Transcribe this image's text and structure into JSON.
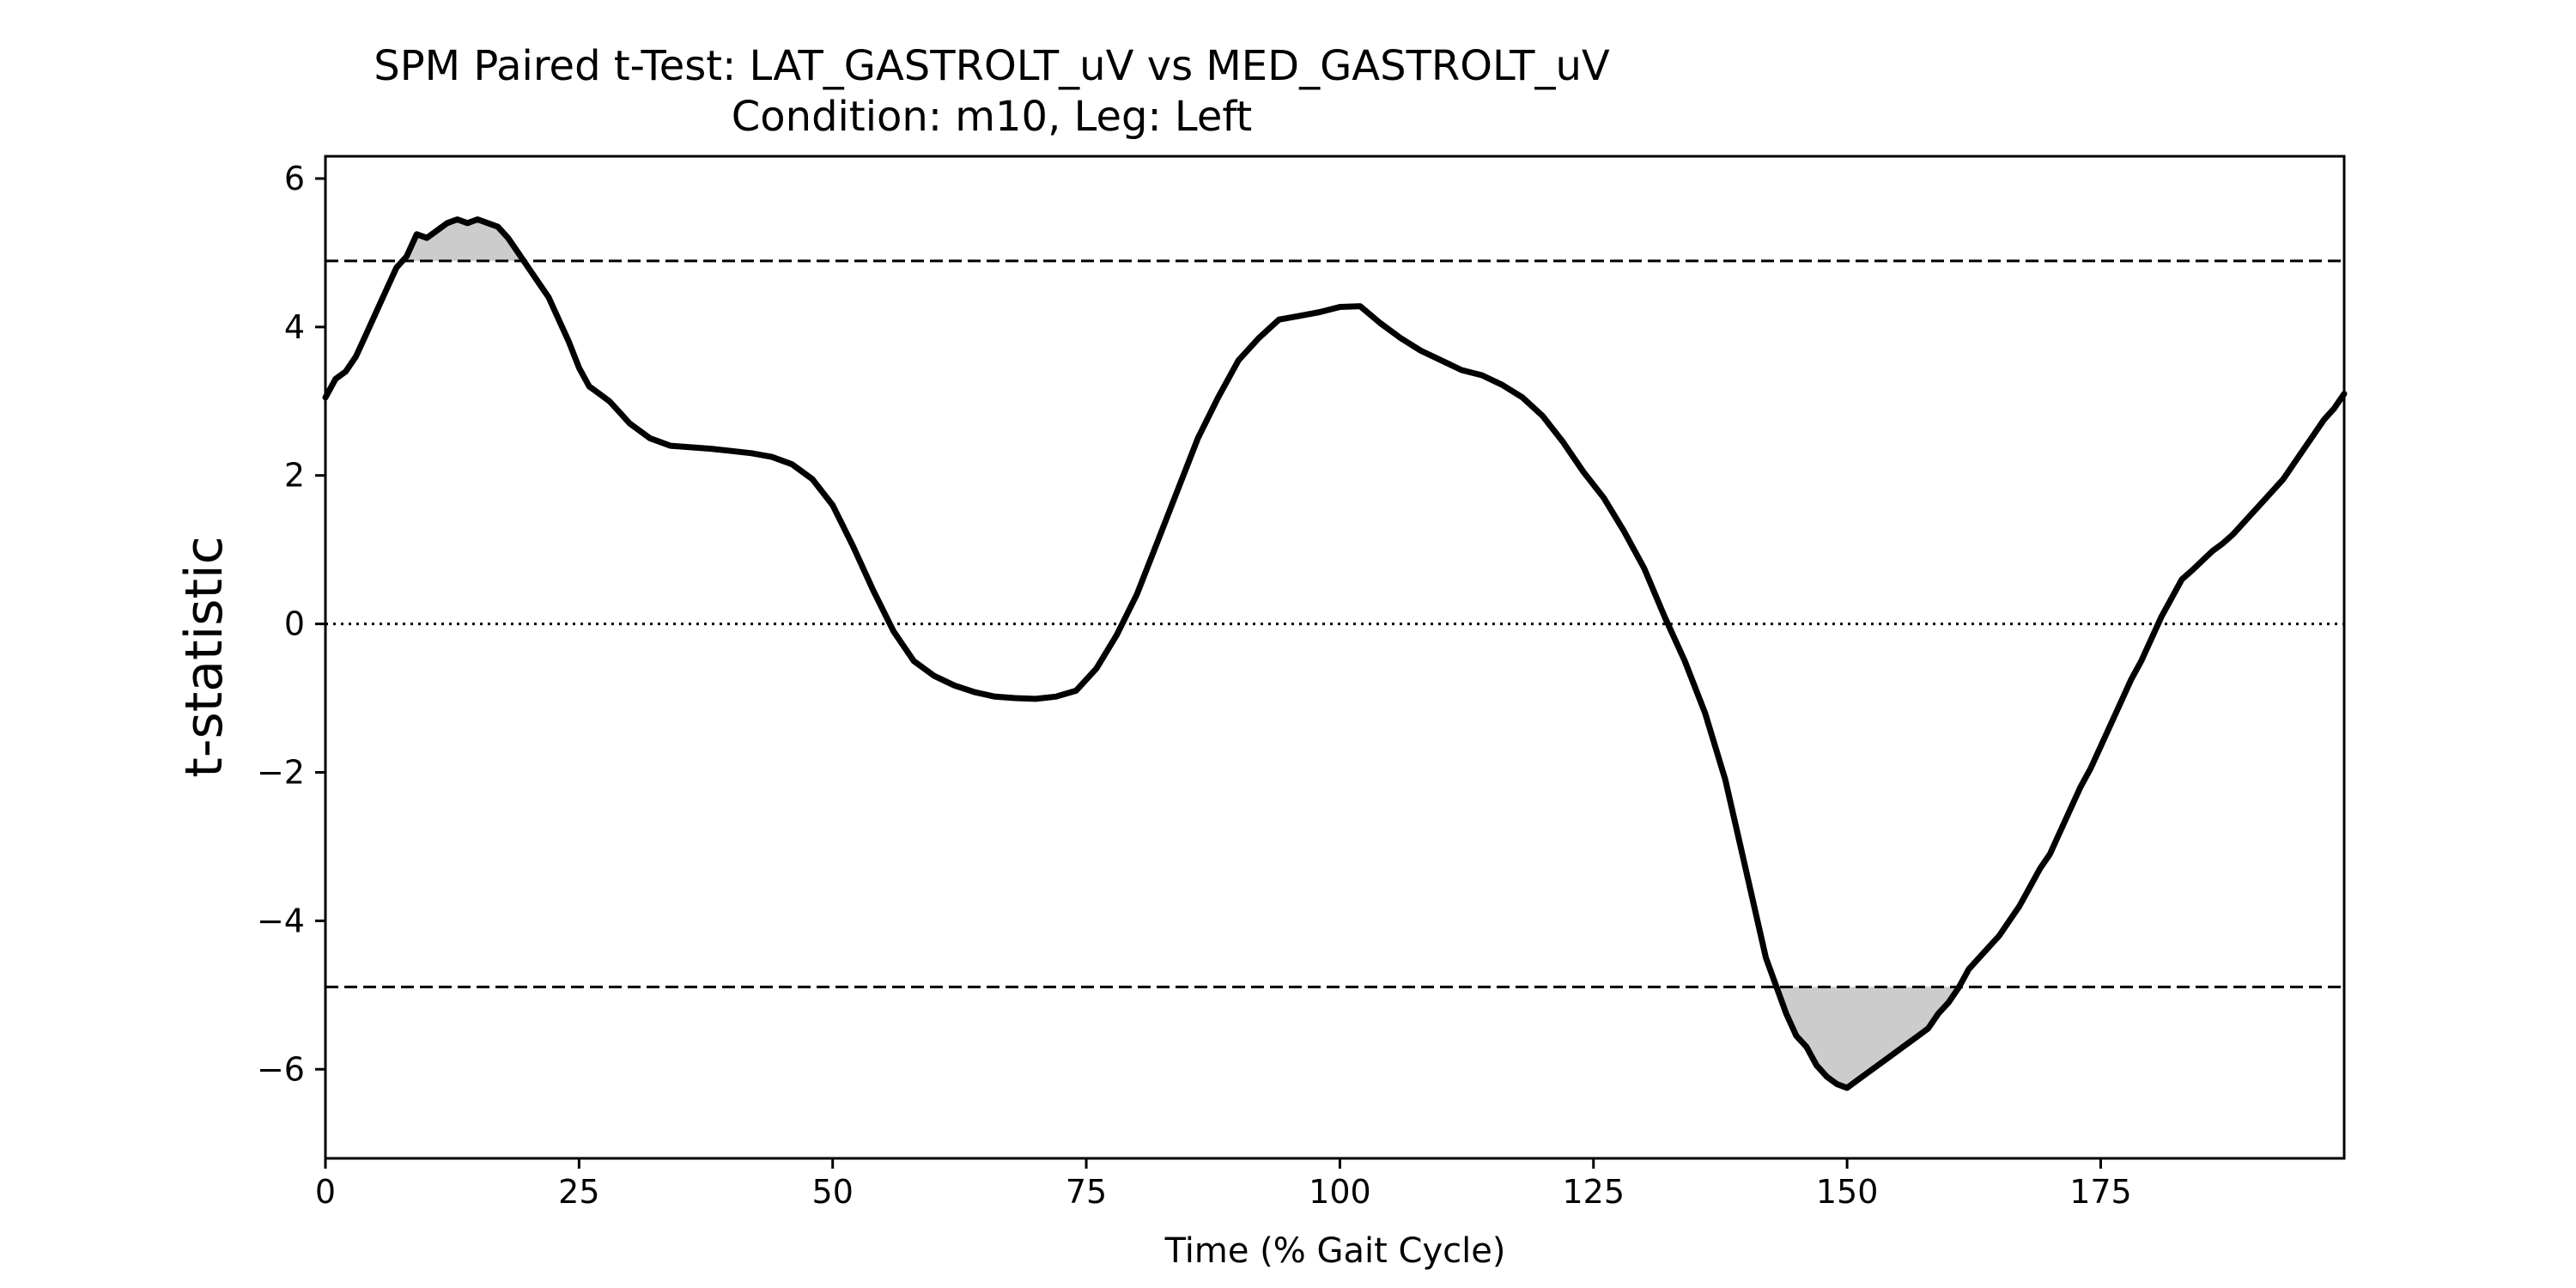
{
  "chart_data": {
    "type": "line",
    "title": "SPM Paired t-Test: LAT_GASTROLT_uV vs MED_GASTROLT_uV",
    "subtitle": "Condition: m10, Leg: Left",
    "xlabel": "Time (% Gait Cycle)",
    "ylabel": "t-statistic",
    "xlim": [
      0,
      199
    ],
    "ylim": [
      -7.2,
      6.3
    ],
    "xticks": [
      0,
      25,
      50,
      75,
      100,
      125,
      150,
      175
    ],
    "xtick_labels": [
      "0",
      "25",
      "50",
      "75",
      "100",
      "125",
      "150",
      "175"
    ],
    "yticks": [
      6,
      4,
      2,
      0,
      -2,
      -4,
      -6
    ],
    "ytick_labels": [
      "6",
      "4",
      "2",
      "0",
      "−2",
      "−4",
      "−6"
    ],
    "threshold": 4.89,
    "grid": false,
    "line_color": "#000000",
    "fill_color": "#cccccc",
    "series": [
      {
        "x": [
          0,
          1,
          2,
          3,
          4,
          5,
          6,
          7,
          8,
          9,
          10,
          11,
          12,
          13,
          14,
          15,
          16,
          17,
          18,
          19,
          20,
          21,
          22,
          23,
          24,
          25,
          26,
          27,
          28,
          29,
          30,
          32,
          34,
          36,
          38,
          40,
          42,
          44,
          46,
          48,
          50,
          52,
          54,
          56,
          58,
          60,
          62,
          64,
          66,
          68,
          70,
          72,
          74,
          76,
          78,
          80,
          82,
          84,
          86,
          88,
          90,
          92,
          94,
          96,
          98,
          100,
          102,
          104,
          106,
          108,
          110,
          112,
          114,
          116,
          118,
          120,
          122,
          124,
          126,
          128,
          130,
          132,
          134,
          136,
          138,
          140,
          142,
          144,
          145,
          146,
          147,
          148,
          149,
          150,
          151,
          152,
          153,
          154,
          155,
          156,
          157,
          158,
          159,
          160,
          161,
          162,
          163,
          164,
          165,
          166,
          167,
          168,
          169,
          170,
          171,
          172,
          173,
          174,
          175,
          176,
          177,
          178,
          179,
          180,
          181,
          182,
          183,
          184,
          185,
          186,
          187,
          188,
          189,
          190,
          191,
          192,
          193,
          194,
          195,
          196,
          197,
          198,
          199
        ],
        "y": [
          3.05,
          3.3,
          3.4,
          3.6,
          3.9,
          4.2,
          4.5,
          4.8,
          4.95,
          5.25,
          5.2,
          5.3,
          5.4,
          5.45,
          5.4,
          5.45,
          5.4,
          5.35,
          5.2,
          5.0,
          4.8,
          4.6,
          4.4,
          4.1,
          3.8,
          3.45,
          3.2,
          3.1,
          3.0,
          2.85,
          2.7,
          2.5,
          2.4,
          2.38,
          2.36,
          2.33,
          2.3,
          2.25,
          2.15,
          1.95,
          1.6,
          1.05,
          0.45,
          -0.1,
          -0.5,
          -0.7,
          -0.83,
          -0.92,
          -0.98,
          -1.0,
          -1.01,
          -0.98,
          -0.9,
          -0.6,
          -0.15,
          0.4,
          1.1,
          1.8,
          2.5,
          3.05,
          3.55,
          3.85,
          4.1,
          4.15,
          4.2,
          4.27,
          4.28,
          4.05,
          3.85,
          3.68,
          3.55,
          3.42,
          3.35,
          3.22,
          3.05,
          2.8,
          2.45,
          2.05,
          1.7,
          1.25,
          0.75,
          0.1,
          -0.5,
          -1.2,
          -2.1,
          -3.3,
          -4.5,
          -5.25,
          -5.55,
          -5.7,
          -5.95,
          -6.1,
          -6.2,
          -6.25,
          -6.15,
          -6.05,
          -5.95,
          -5.85,
          -5.75,
          -5.65,
          -5.55,
          -5.45,
          -5.25,
          -5.1,
          -4.9,
          -4.65,
          -4.5,
          -4.35,
          -4.2,
          -4.0,
          -3.8,
          -3.55,
          -3.3,
          -3.1,
          -2.8,
          -2.5,
          -2.2,
          -1.95,
          -1.65,
          -1.35,
          -1.05,
          -0.75,
          -0.5,
          -0.2,
          0.1,
          0.35,
          0.6,
          0.72,
          0.85,
          0.98,
          1.08,
          1.2,
          1.35,
          1.5,
          1.65,
          1.8,
          1.95,
          2.15,
          2.35,
          2.55,
          2.75,
          2.9,
          3.1
        ]
      }
    ]
  }
}
